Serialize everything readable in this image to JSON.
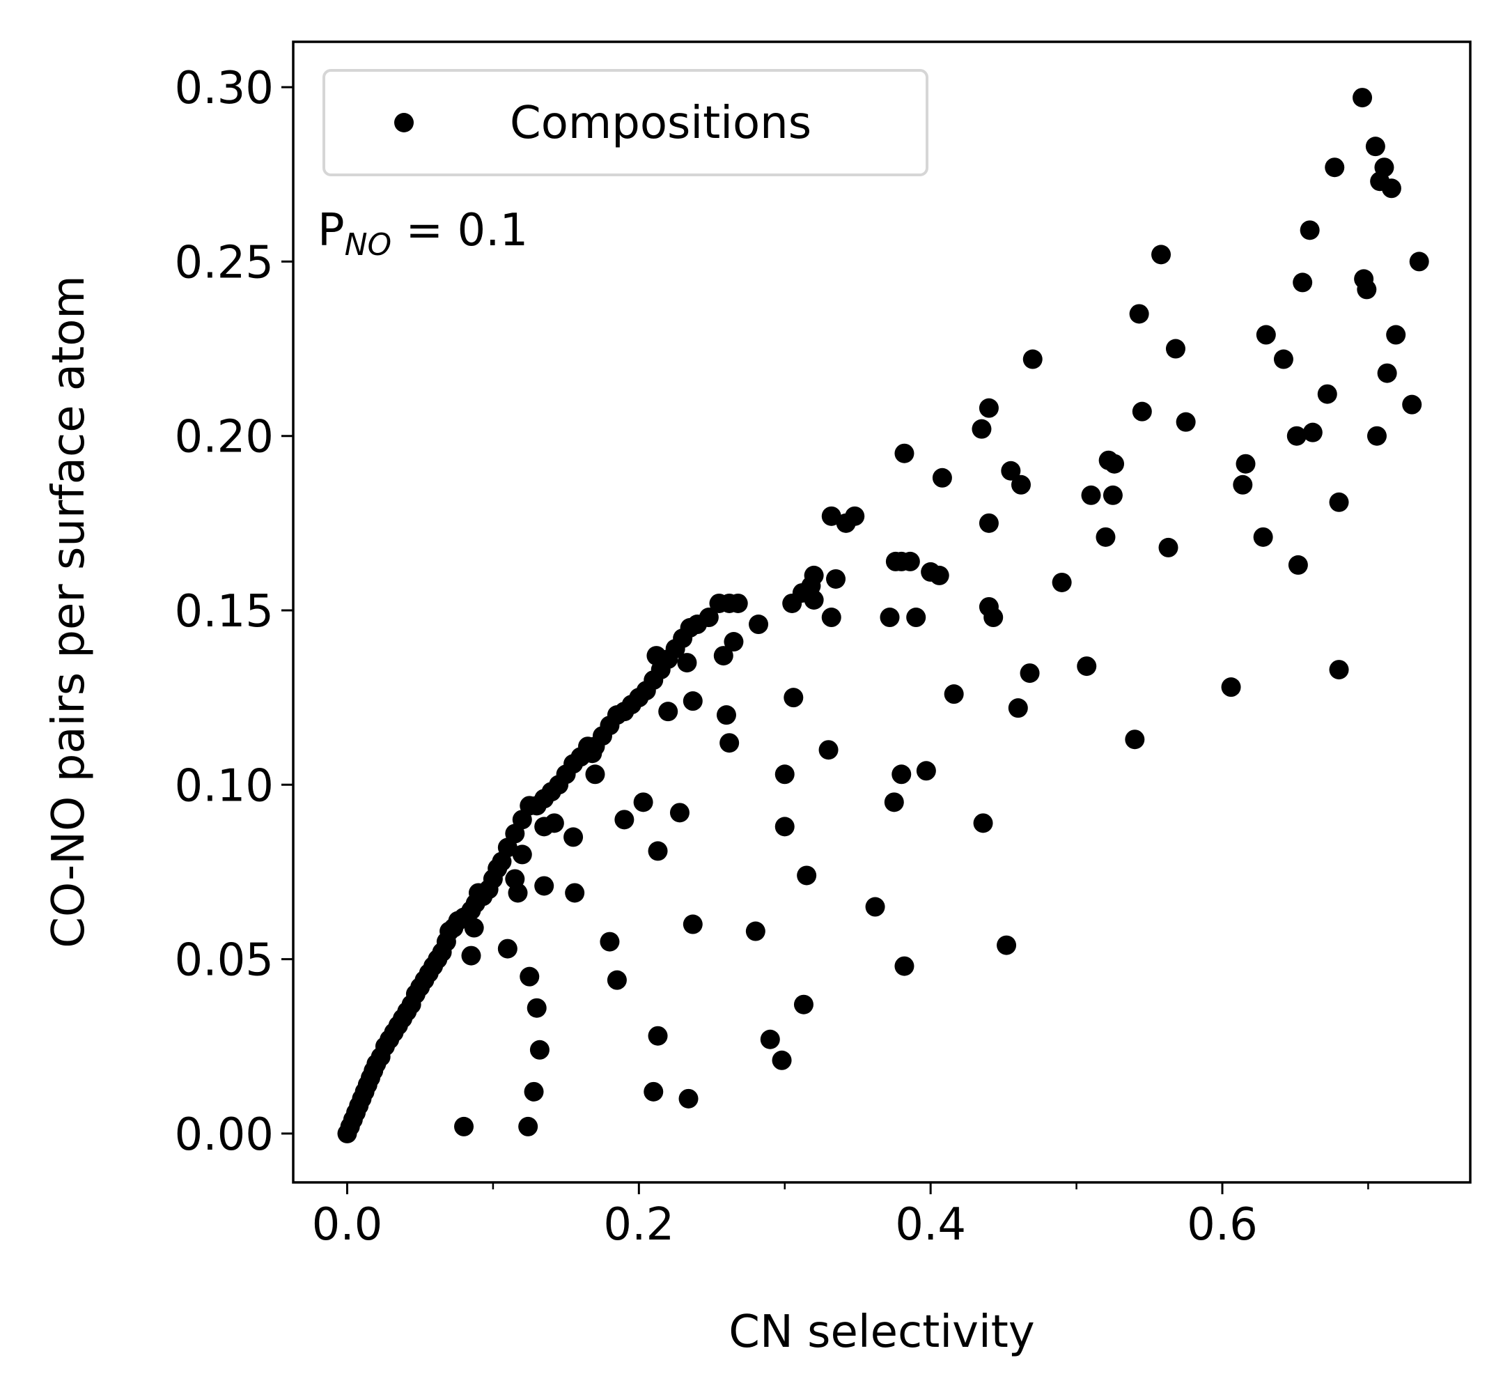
{
  "chart_data": {
    "type": "scatter",
    "xlabel": "CN selectivity",
    "ylabel": "CO-NO pairs per surface atom",
    "xlim": [
      -0.037,
      0.77
    ],
    "ylim": [
      -0.014,
      0.313
    ],
    "xticks": [
      0.0,
      0.2,
      0.4,
      0.6
    ],
    "xtick_labels": [
      "0.0",
      "0.2",
      "0.4",
      "0.6"
    ],
    "xminor_ticks": [
      0.1,
      0.3,
      0.5,
      0.7
    ],
    "yticks": [
      0.0,
      0.05,
      0.1,
      0.15,
      0.2,
      0.25,
      0.3
    ],
    "ytick_labels": [
      "0.00",
      "0.05",
      "0.10",
      "0.15",
      "0.20",
      "0.25",
      "0.30"
    ],
    "grid": false,
    "legend_placement": "top-left",
    "annotation": {
      "main": "P",
      "sub": "NO",
      "tail": " = 0.1"
    },
    "marker_color": "#000000",
    "series": [
      {
        "name": "Compositions",
        "points": [
          [
            0.0,
            0.0
          ],
          [
            0.002,
            0.002
          ],
          [
            0.004,
            0.004
          ],
          [
            0.006,
            0.006
          ],
          [
            0.008,
            0.008
          ],
          [
            0.01,
            0.01
          ],
          [
            0.012,
            0.012
          ],
          [
            0.014,
            0.014
          ],
          [
            0.016,
            0.016
          ],
          [
            0.018,
            0.018
          ],
          [
            0.02,
            0.02
          ],
          [
            0.023,
            0.022
          ],
          [
            0.026,
            0.025
          ],
          [
            0.029,
            0.027
          ],
          [
            0.032,
            0.029
          ],
          [
            0.035,
            0.031
          ],
          [
            0.038,
            0.033
          ],
          [
            0.041,
            0.035
          ],
          [
            0.044,
            0.037
          ],
          [
            0.047,
            0.04
          ],
          [
            0.05,
            0.042
          ],
          [
            0.053,
            0.044
          ],
          [
            0.056,
            0.046
          ],
          [
            0.059,
            0.048
          ],
          [
            0.062,
            0.05
          ],
          [
            0.065,
            0.052
          ],
          [
            0.068,
            0.055
          ],
          [
            0.07,
            0.058
          ],
          [
            0.073,
            0.059
          ],
          [
            0.076,
            0.061
          ],
          [
            0.08,
            0.062
          ],
          [
            0.085,
            0.064
          ],
          [
            0.088,
            0.066
          ],
          [
            0.09,
            0.069
          ],
          [
            0.093,
            0.068
          ],
          [
            0.097,
            0.07
          ],
          [
            0.1,
            0.073
          ],
          [
            0.103,
            0.076
          ],
          [
            0.106,
            0.078
          ],
          [
            0.11,
            0.082
          ],
          [
            0.115,
            0.086
          ],
          [
            0.12,
            0.09
          ],
          [
            0.125,
            0.094
          ],
          [
            0.13,
            0.094
          ],
          [
            0.135,
            0.096
          ],
          [
            0.14,
            0.098
          ],
          [
            0.145,
            0.1
          ],
          [
            0.15,
            0.103
          ],
          [
            0.155,
            0.106
          ],
          [
            0.16,
            0.108
          ],
          [
            0.165,
            0.111
          ],
          [
            0.17,
            0.111
          ],
          [
            0.175,
            0.114
          ],
          [
            0.18,
            0.117
          ],
          [
            0.185,
            0.12
          ],
          [
            0.19,
            0.121
          ],
          [
            0.195,
            0.123
          ],
          [
            0.2,
            0.125
          ],
          [
            0.205,
            0.127
          ],
          [
            0.21,
            0.13
          ],
          [
            0.215,
            0.133
          ],
          [
            0.22,
            0.136
          ],
          [
            0.225,
            0.139
          ],
          [
            0.23,
            0.142
          ],
          [
            0.235,
            0.145
          ],
          [
            0.24,
            0.146
          ],
          [
            0.248,
            0.148
          ],
          [
            0.255,
            0.152
          ],
          [
            0.262,
            0.152
          ],
          [
            0.268,
            0.152
          ],
          [
            0.282,
            0.146
          ],
          [
            0.305,
            0.152
          ],
          [
            0.312,
            0.155
          ],
          [
            0.318,
            0.157
          ],
          [
            0.32,
            0.16
          ],
          [
            0.32,
            0.153
          ],
          [
            0.332,
            0.148
          ],
          [
            0.335,
            0.159
          ],
          [
            0.332,
            0.177
          ],
          [
            0.342,
            0.175
          ],
          [
            0.348,
            0.177
          ],
          [
            0.372,
            0.148
          ],
          [
            0.376,
            0.164
          ],
          [
            0.38,
            0.164
          ],
          [
            0.386,
            0.164
          ],
          [
            0.39,
            0.148
          ],
          [
            0.4,
            0.161
          ],
          [
            0.406,
            0.16
          ],
          [
            0.382,
            0.195
          ],
          [
            0.408,
            0.188
          ],
          [
            0.435,
            0.202
          ],
          [
            0.44,
            0.208
          ],
          [
            0.44,
            0.175
          ],
          [
            0.44,
            0.151
          ],
          [
            0.443,
            0.148
          ],
          [
            0.455,
            0.19
          ],
          [
            0.462,
            0.186
          ],
          [
            0.47,
            0.222
          ],
          [
            0.49,
            0.158
          ],
          [
            0.507,
            0.134
          ],
          [
            0.51,
            0.183
          ],
          [
            0.52,
            0.171
          ],
          [
            0.522,
            0.193
          ],
          [
            0.525,
            0.183
          ],
          [
            0.526,
            0.192
          ],
          [
            0.543,
            0.235
          ],
          [
            0.545,
            0.207
          ],
          [
            0.558,
            0.252
          ],
          [
            0.563,
            0.168
          ],
          [
            0.568,
            0.225
          ],
          [
            0.575,
            0.204
          ],
          [
            0.54,
            0.113
          ],
          [
            0.606,
            0.128
          ],
          [
            0.614,
            0.186
          ],
          [
            0.616,
            0.192
          ],
          [
            0.628,
            0.171
          ],
          [
            0.63,
            0.229
          ],
          [
            0.642,
            0.222
          ],
          [
            0.651,
            0.2
          ],
          [
            0.652,
            0.163
          ],
          [
            0.655,
            0.244
          ],
          [
            0.66,
            0.259
          ],
          [
            0.662,
            0.201
          ],
          [
            0.672,
            0.212
          ],
          [
            0.677,
            0.277
          ],
          [
            0.68,
            0.181
          ],
          [
            0.68,
            0.133
          ],
          [
            0.696,
            0.297
          ],
          [
            0.697,
            0.245
          ],
          [
            0.699,
            0.242
          ],
          [
            0.705,
            0.283
          ],
          [
            0.706,
            0.2
          ],
          [
            0.708,
            0.273
          ],
          [
            0.711,
            0.277
          ],
          [
            0.713,
            0.218
          ],
          [
            0.716,
            0.271
          ],
          [
            0.719,
            0.229
          ],
          [
            0.73,
            0.209
          ],
          [
            0.735,
            0.25
          ],
          [
            0.08,
            0.002
          ],
          [
            0.085,
            0.051
          ],
          [
            0.087,
            0.059
          ],
          [
            0.11,
            0.053
          ],
          [
            0.115,
            0.073
          ],
          [
            0.117,
            0.069
          ],
          [
            0.12,
            0.08
          ],
          [
            0.125,
            0.045
          ],
          [
            0.13,
            0.036
          ],
          [
            0.132,
            0.024
          ],
          [
            0.128,
            0.012
          ],
          [
            0.124,
            0.002
          ],
          [
            0.135,
            0.088
          ],
          [
            0.135,
            0.071
          ],
          [
            0.142,
            0.089
          ],
          [
            0.155,
            0.085
          ],
          [
            0.156,
            0.069
          ],
          [
            0.168,
            0.109
          ],
          [
            0.17,
            0.103
          ],
          [
            0.18,
            0.055
          ],
          [
            0.185,
            0.044
          ],
          [
            0.19,
            0.09
          ],
          [
            0.203,
            0.095
          ],
          [
            0.21,
            0.012
          ],
          [
            0.213,
            0.081
          ],
          [
            0.213,
            0.028
          ],
          [
            0.212,
            0.137
          ],
          [
            0.22,
            0.121
          ],
          [
            0.228,
            0.092
          ],
          [
            0.233,
            0.135
          ],
          [
            0.234,
            0.01
          ],
          [
            0.237,
            0.06
          ],
          [
            0.237,
            0.124
          ],
          [
            0.258,
            0.137
          ],
          [
            0.26,
            0.12
          ],
          [
            0.262,
            0.112
          ],
          [
            0.265,
            0.141
          ],
          [
            0.28,
            0.058
          ],
          [
            0.29,
            0.027
          ],
          [
            0.298,
            0.021
          ],
          [
            0.3,
            0.103
          ],
          [
            0.3,
            0.088
          ],
          [
            0.306,
            0.125
          ],
          [
            0.313,
            0.037
          ],
          [
            0.315,
            0.074
          ],
          [
            0.33,
            0.11
          ],
          [
            0.362,
            0.065
          ],
          [
            0.375,
            0.095
          ],
          [
            0.38,
            0.103
          ],
          [
            0.382,
            0.048
          ],
          [
            0.397,
            0.104
          ],
          [
            0.416,
            0.126
          ],
          [
            0.436,
            0.089
          ],
          [
            0.452,
            0.054
          ],
          [
            0.46,
            0.122
          ],
          [
            0.468,
            0.132
          ]
        ]
      }
    ]
  }
}
